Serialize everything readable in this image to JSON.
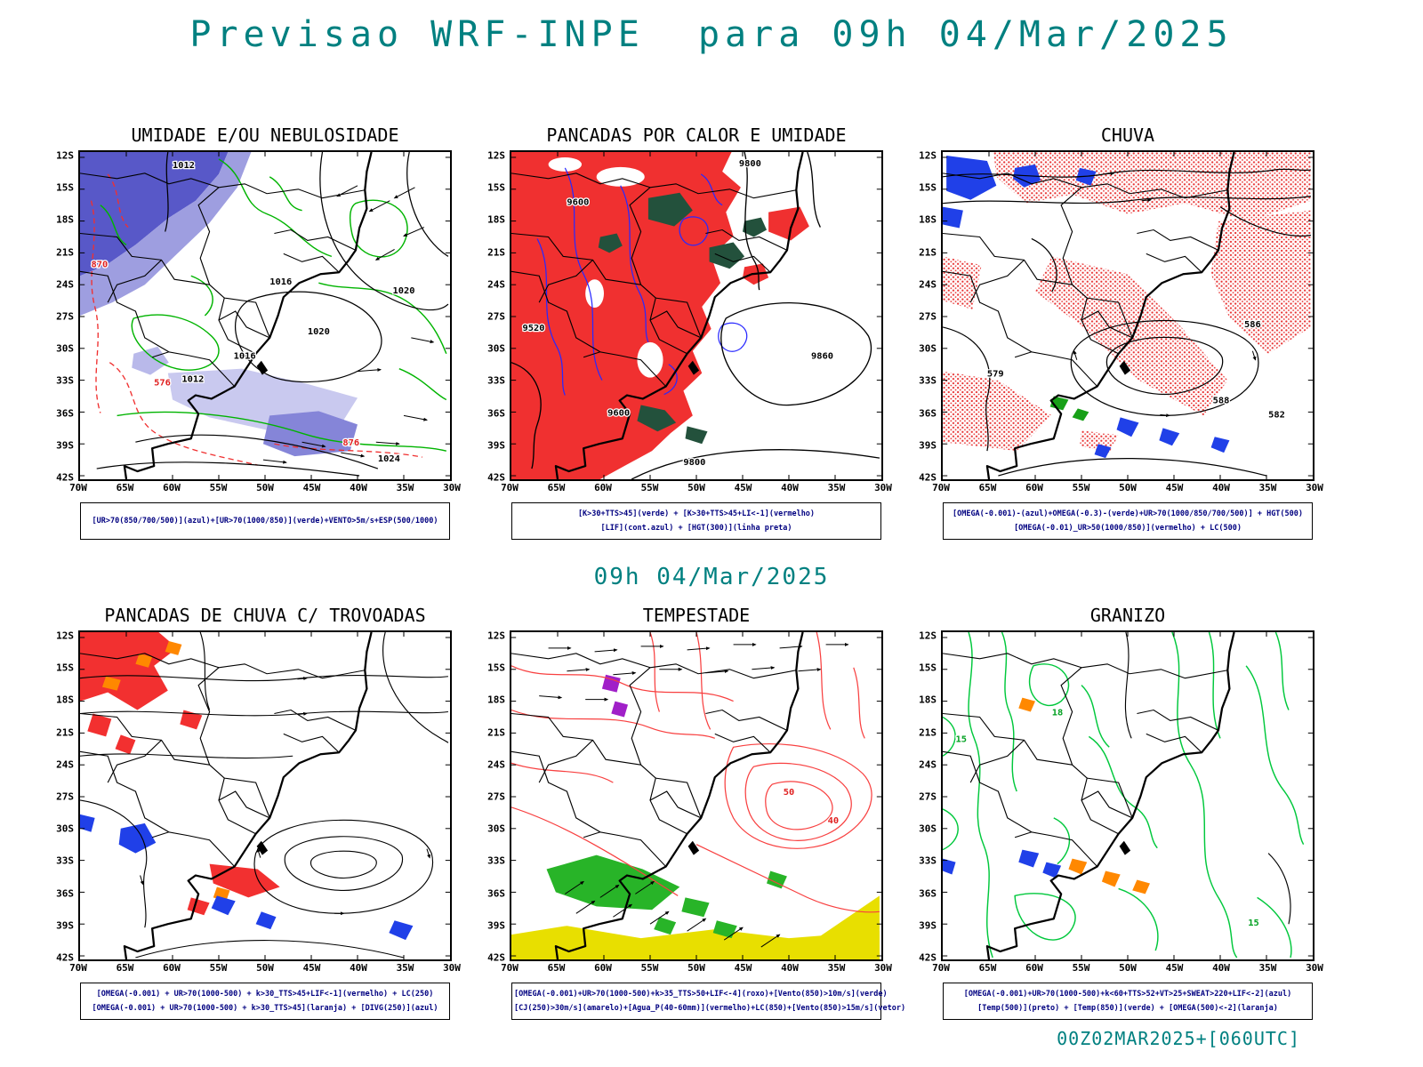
{
  "page": {
    "title": "Previsao WRF-INPE  para 09h 04/Mar/2025",
    "subtitle": "09h 04/Mar/2025",
    "footer": "00Z02MAR2025+[060UTC]"
  },
  "colors": {
    "accent_teal": "#008080",
    "legend_text": "#000080",
    "red_fill": "#f03030",
    "green_contour": "#00b400",
    "blue_patch": "#2040e8",
    "dark_green_patch": "#23513c",
    "yellow_fill": "#e8df00",
    "orange_patch": "#ff8800",
    "purple_patch": "#a020c8",
    "humidity_blue": "#5858c8"
  },
  "axes": {
    "lat": [
      "12S",
      "15S",
      "18S",
      "21S",
      "24S",
      "27S",
      "30S",
      "33S",
      "36S",
      "39S",
      "42S"
    ],
    "lon": [
      "70W",
      "65W",
      "60W",
      "55W",
      "50W",
      "45W",
      "40W",
      "35W",
      "30W"
    ]
  },
  "panels": [
    {
      "id": "umidade",
      "title": "UMIDADE E/OU NEBULOSIDADE",
      "legend": [
        "[UR>70(850/700/500)](azul)+[UR>70(1000/850)](verde)+VENTO>5m/s+ESP(500/1000)"
      ],
      "contour_labels": [
        "1012",
        "1016",
        "1020",
        "1016",
        "1012",
        "1020",
        "1024",
        "870",
        "876",
        "576"
      ]
    },
    {
      "id": "pancadas-calor",
      "title": "PANCADAS POR CALOR E UMIDADE",
      "legend": [
        "[K>30+TTS>45](verde) + [K>30+TTS>45+LI<-1](vermelho)",
        "[LIF](cont.azul) + [HGT(300)](linha preta)"
      ],
      "contour_labels": [
        "9800",
        "9860",
        "9800",
        "9520",
        "9600",
        "9600"
      ]
    },
    {
      "id": "chuva",
      "title": "CHUVA",
      "legend": [
        "[OMEGA(-0.001)-(azul)+OMEGA(-0.3)-(verde)+UR>70(1000/850/700/500)] + HGT(500)",
        "[OMEGA(-0.01)_UR>50(1000/850)](vermelho) + LC(500)"
      ],
      "contour_labels": [
        "586",
        "582",
        "588",
        "579"
      ]
    },
    {
      "id": "trovoadas",
      "title": "PANCADAS DE CHUVA C/ TROVOADAS",
      "legend": [
        "[OMEGA(-0.001) + UR>70(1000-500) + k>30_TTS>45+LIF<-1](vermelho) + LC(250)",
        "[OMEGA(-0.001) + UR>70(1000-500) + k>30_TTS>45](laranja) + [DIVG(250)](azul)"
      ],
      "contour_labels": []
    },
    {
      "id": "tempestade",
      "title": "TEMPESTADE",
      "legend": [
        "[OMEGA(-0.001)+UR>70(1000-500)+k>35_TTS>50+LIF<-4](roxo)+[Vento(850)>10m/s](verde)",
        "[CJ(250)>30m/s](amarelo)+[Agua_P(40-60mm)](vermelho)+LC(850)+[Vento(850)>15m/s](vetor)"
      ],
      "contour_labels": [
        "50",
        "40"
      ]
    },
    {
      "id": "granizo",
      "title": "GRANIZO",
      "legend": [
        "[OMEGA(-0.001)+UR>70(1000-500)+k<60+TTS>52+VT>25+SWEAT>220+LIF<-2](azul)",
        "[Temp(500)](preto) + [Temp(850)](verde) + [OMEGA(500)<-2](laranja)"
      ],
      "contour_labels": [
        "18",
        "15",
        "15"
      ]
    }
  ]
}
